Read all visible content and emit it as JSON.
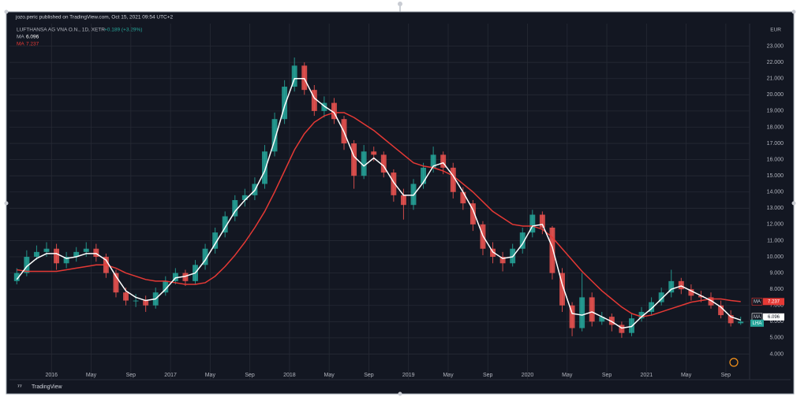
{
  "header": "jozo.peric published on TradingView.com, Oct 15, 2021 09:54 UTC+2",
  "footer": "TradingView",
  "chart_data": {
    "type": "candlestick",
    "title": "LUFTHANSA AG VNA O.N., 1D, XETR",
    "change": "+0.189 (+3.29%)",
    "symbol": "LHA",
    "currency": "EUR",
    "x": [
      "2015-09",
      "2015-10",
      "2015-11",
      "2015-12",
      "2016-01",
      "2016-02",
      "2016-03",
      "2016-04",
      "2016-05",
      "2016-06",
      "2016-07",
      "2016-08",
      "2016-09",
      "2016-10",
      "2016-11",
      "2016-12",
      "2017-01",
      "2017-02",
      "2017-03",
      "2017-04",
      "2017-05",
      "2017-06",
      "2017-07",
      "2017-08",
      "2017-09",
      "2017-10",
      "2017-11",
      "2017-12",
      "2018-01",
      "2018-02",
      "2018-03",
      "2018-04",
      "2018-05",
      "2018-06",
      "2018-07",
      "2018-08",
      "2018-09",
      "2018-10",
      "2018-11",
      "2018-12",
      "2019-01",
      "2019-02",
      "2019-03",
      "2019-04",
      "2019-05",
      "2019-06",
      "2019-07",
      "2019-08",
      "2019-09",
      "2019-10",
      "2019-11",
      "2019-12",
      "2020-01",
      "2020-02",
      "2020-03",
      "2020-04",
      "2020-05",
      "2020-06",
      "2020-07",
      "2020-08",
      "2020-09",
      "2020-10",
      "2020-11",
      "2020-12",
      "2021-01",
      "2021-02",
      "2021-03",
      "2021-04",
      "2021-05",
      "2021-06",
      "2021-07",
      "2021-08",
      "2021-09",
      "2021-10"
    ],
    "open": [
      8.5,
      9.0,
      10.0,
      10.3,
      10.5,
      9.6,
      10.0,
      10.3,
      10.5,
      10.0,
      9.0,
      7.8,
      7.3,
      7.3,
      7.0,
      7.8,
      8.5,
      9.0,
      8.5,
      9.5,
      10.5,
      11.5,
      12.5,
      13.5,
      13.8,
      14.5,
      16.5,
      18.5,
      20.5,
      21.8,
      20.3,
      19.0,
      19.5,
      18.5,
      17.0,
      15.0,
      16.5,
      16.3,
      15.2,
      13.8,
      13.2,
      14.5,
      15.5,
      16.3,
      15.5,
      14.0,
      13.3,
      12.0,
      10.5,
      10.0,
      9.6,
      10.5,
      11.5,
      12.6,
      11.8,
      9.0,
      7.0,
      5.6,
      7.5,
      6.0,
      6.3,
      5.8,
      5.3,
      6.2,
      6.6,
      7.2,
      7.8,
      8.5,
      8.0,
      7.6,
      7.5,
      7.0,
      6.4,
      5.9
    ],
    "high": [
      9.3,
      10.4,
      10.7,
      10.9,
      10.8,
      10.3,
      10.6,
      10.9,
      10.8,
      10.2,
      9.2,
      8.1,
      7.7,
      7.6,
      8.1,
      8.8,
      9.3,
      9.2,
      9.8,
      10.8,
      11.8,
      12.8,
      13.8,
      14.2,
      14.9,
      16.9,
      18.9,
      20.9,
      22.3,
      22.0,
      20.6,
      19.9,
      19.8,
      18.7,
      17.2,
      16.9,
      16.8,
      16.5,
      15.4,
      14.2,
      14.8,
      15.8,
      16.8,
      16.5,
      15.8,
      14.3,
      13.5,
      12.2,
      10.9,
      10.3,
      10.8,
      11.8,
      12.9,
      12.8,
      11.9,
      9.3,
      7.2,
      9.0,
      7.8,
      6.6,
      6.5,
      6.0,
      6.5,
      6.9,
      7.5,
      8.1,
      9.2,
      8.7,
      8.3,
      7.9,
      7.8,
      7.3,
      6.7,
      6.3
    ],
    "low": [
      8.3,
      8.8,
      9.8,
      10.0,
      9.2,
      9.3,
      9.7,
      10.0,
      9.7,
      8.7,
      7.5,
      7.0,
      6.9,
      6.6,
      6.8,
      7.6,
      8.3,
      8.2,
      8.3,
      9.2,
      10.2,
      11.2,
      12.2,
      13.1,
      13.5,
      14.2,
      16.2,
      18.2,
      20.2,
      20.0,
      18.7,
      18.6,
      18.2,
      16.6,
      14.2,
      14.8,
      15.9,
      14.9,
      13.4,
      12.3,
      12.9,
      14.2,
      15.2,
      15.1,
      13.6,
      12.9,
      11.6,
      10.1,
      9.6,
      9.1,
      9.4,
      10.2,
      11.2,
      11.4,
      8.6,
      6.6,
      5.1,
      5.4,
      5.7,
      5.8,
      5.4,
      5.0,
      5.1,
      6.0,
      6.4,
      7.0,
      7.5,
      7.7,
      7.3,
      7.2,
      6.8,
      6.2,
      5.7,
      5.8
    ],
    "close": [
      9.0,
      10.0,
      10.3,
      10.5,
      9.6,
      10.0,
      10.3,
      10.5,
      10.0,
      9.0,
      7.8,
      7.3,
      7.3,
      7.0,
      7.8,
      8.5,
      9.0,
      8.5,
      9.5,
      10.5,
      11.5,
      12.5,
      13.5,
      13.8,
      14.5,
      16.5,
      18.5,
      20.5,
      21.8,
      20.3,
      19.0,
      19.5,
      18.5,
      17.0,
      15.0,
      16.5,
      16.3,
      15.2,
      13.8,
      13.2,
      14.5,
      15.5,
      16.3,
      15.5,
      14.0,
      13.3,
      12.0,
      10.5,
      10.0,
      9.6,
      10.5,
      11.5,
      12.6,
      11.8,
      9.0,
      7.0,
      5.6,
      7.5,
      6.0,
      6.3,
      5.8,
      5.3,
      6.2,
      6.6,
      7.2,
      7.8,
      8.5,
      8.0,
      7.6,
      7.5,
      7.0,
      6.4,
      5.9,
      6.0
    ],
    "up_color": "#26a69a",
    "down_color": "#ef5350",
    "series": [
      {
        "name": "MA",
        "color": "#ffffff",
        "values": [
          8.6,
          9.4,
          9.9,
          10.2,
          10.2,
          9.9,
          10.0,
          10.2,
          10.2,
          9.8,
          8.8,
          7.9,
          7.5,
          7.3,
          7.4,
          8.0,
          8.7,
          8.8,
          9.0,
          9.8,
          10.8,
          11.8,
          12.8,
          13.5,
          14.1,
          15.3,
          17.2,
          19.3,
          21.0,
          21.0,
          19.8,
          19.3,
          18.9,
          17.7,
          16.2,
          15.6,
          16.1,
          15.6,
          14.6,
          13.8,
          13.8,
          14.6,
          15.6,
          15.8,
          15.0,
          14.0,
          12.9,
          11.3,
          10.3,
          9.9,
          10.0,
          10.8,
          11.9,
          12.0,
          10.6,
          8.3,
          6.5,
          6.4,
          6.6,
          6.3,
          6.0,
          5.6,
          5.7,
          6.3,
          6.8,
          7.4,
          8.0,
          8.2,
          7.9,
          7.6,
          7.3,
          6.9,
          6.3,
          6.096
        ]
      },
      {
        "name": "MA",
        "color": "#e53935",
        "values": [
          9.2,
          9.1,
          9.1,
          9.1,
          9.1,
          9.2,
          9.3,
          9.4,
          9.5,
          9.5,
          9.3,
          9.0,
          8.8,
          8.6,
          8.5,
          8.5,
          8.4,
          8.3,
          8.3,
          8.4,
          8.8,
          9.4,
          10.1,
          10.9,
          11.8,
          12.8,
          14.0,
          15.3,
          16.6,
          17.6,
          18.3,
          18.7,
          18.9,
          18.9,
          18.6,
          18.2,
          17.8,
          17.3,
          16.8,
          16.3,
          15.8,
          15.6,
          15.5,
          15.3,
          15.0,
          14.5,
          14.0,
          13.4,
          12.8,
          12.4,
          12.0,
          11.9,
          11.9,
          11.7,
          11.2,
          10.5,
          9.8,
          9.1,
          8.5,
          7.9,
          7.4,
          6.9,
          6.5,
          6.3,
          6.4,
          6.6,
          6.8,
          7.0,
          7.2,
          7.3,
          7.4,
          7.4,
          7.3,
          7.237
        ]
      }
    ],
    "xlim": [
      "2015-09",
      "2021-11"
    ],
    "xticks": [
      {
        "value": "2016-01",
        "label": "2016"
      },
      {
        "value": "2016-05",
        "label": "May"
      },
      {
        "value": "2016-09",
        "label": "Sep"
      },
      {
        "value": "2017-01",
        "label": "2017"
      },
      {
        "value": "2017-05",
        "label": "May"
      },
      {
        "value": "2017-09",
        "label": "Sep"
      },
      {
        "value": "2018-01",
        "label": "2018"
      },
      {
        "value": "2018-05",
        "label": "May"
      },
      {
        "value": "2018-09",
        "label": "Sep"
      },
      {
        "value": "2019-01",
        "label": "2019"
      },
      {
        "value": "2019-05",
        "label": "May"
      },
      {
        "value": "2019-09",
        "label": "Sep"
      },
      {
        "value": "2020-01",
        "label": "2020"
      },
      {
        "value": "2020-05",
        "label": "May"
      },
      {
        "value": "2020-09",
        "label": "Sep"
      },
      {
        "value": "2021-01",
        "label": "2021"
      },
      {
        "value": "2021-05",
        "label": "May"
      },
      {
        "value": "2021-09",
        "label": "Sep"
      }
    ],
    "ylim": [
      3.0,
      24.1
    ],
    "yticks": [
      {
        "value": 4,
        "label": "4.000"
      },
      {
        "value": 5,
        "label": "5.000"
      },
      {
        "value": 6,
        "label": "6.000"
      },
      {
        "value": 7,
        "label": "7.000"
      },
      {
        "value": 8,
        "label": "8.000"
      },
      {
        "value": 9,
        "label": "9.000"
      },
      {
        "value": 10,
        "label": "10.000"
      },
      {
        "value": 11,
        "label": "11.000"
      },
      {
        "value": 12,
        "label": "12.000"
      },
      {
        "value": 13,
        "label": "13.000"
      },
      {
        "value": 14,
        "label": "14.000"
      },
      {
        "value": 15,
        "label": "15.000"
      },
      {
        "value": 16,
        "label": "16.000"
      },
      {
        "value": 17,
        "label": "17.000"
      },
      {
        "value": 18,
        "label": "18.000"
      },
      {
        "value": 19,
        "label": "19.000"
      },
      {
        "value": 20,
        "label": "20.000"
      },
      {
        "value": 21,
        "label": "21.000"
      },
      {
        "value": 22,
        "label": "22.000"
      },
      {
        "value": 23,
        "label": "23.000"
      }
    ],
    "grid": true
  }
}
